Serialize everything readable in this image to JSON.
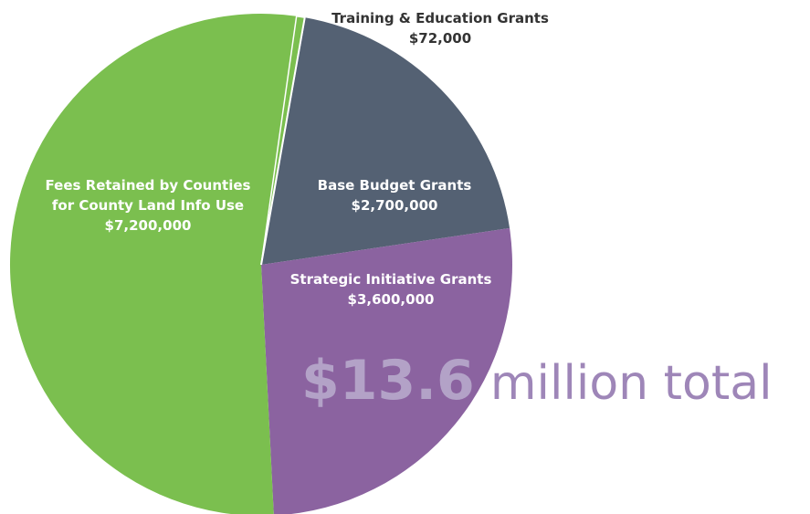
{
  "chart_data": {
    "type": "pie",
    "slices": [
      {
        "label_lines": [
          "Base Budget Grants",
          "$2,700,000"
        ],
        "value": 2700000,
        "color": "#546173"
      },
      {
        "label_lines": [
          "Strategic Initiative Grants",
          "$3,600,000"
        ],
        "value": 3600000,
        "color": "#8B63A0"
      },
      {
        "label_lines": [
          "Fees Retained by Counties",
          "for County Land Info Use",
          "$7,200,000"
        ],
        "value": 7200000,
        "color": "#7BBF4F"
      },
      {
        "label_lines": [
          "Training & Education Grants",
          "$72,000"
        ],
        "value": 72000,
        "color": "#7BBF4F"
      }
    ],
    "total_amount": "$13.6",
    "total_suffix": "million total",
    "colors": {
      "label_light": "#ffffff",
      "label_dark": "#333333",
      "total_amount": "#B3A2C7",
      "total_suffix": "#9E86B8",
      "slice_border": "#ffffff"
    }
  }
}
